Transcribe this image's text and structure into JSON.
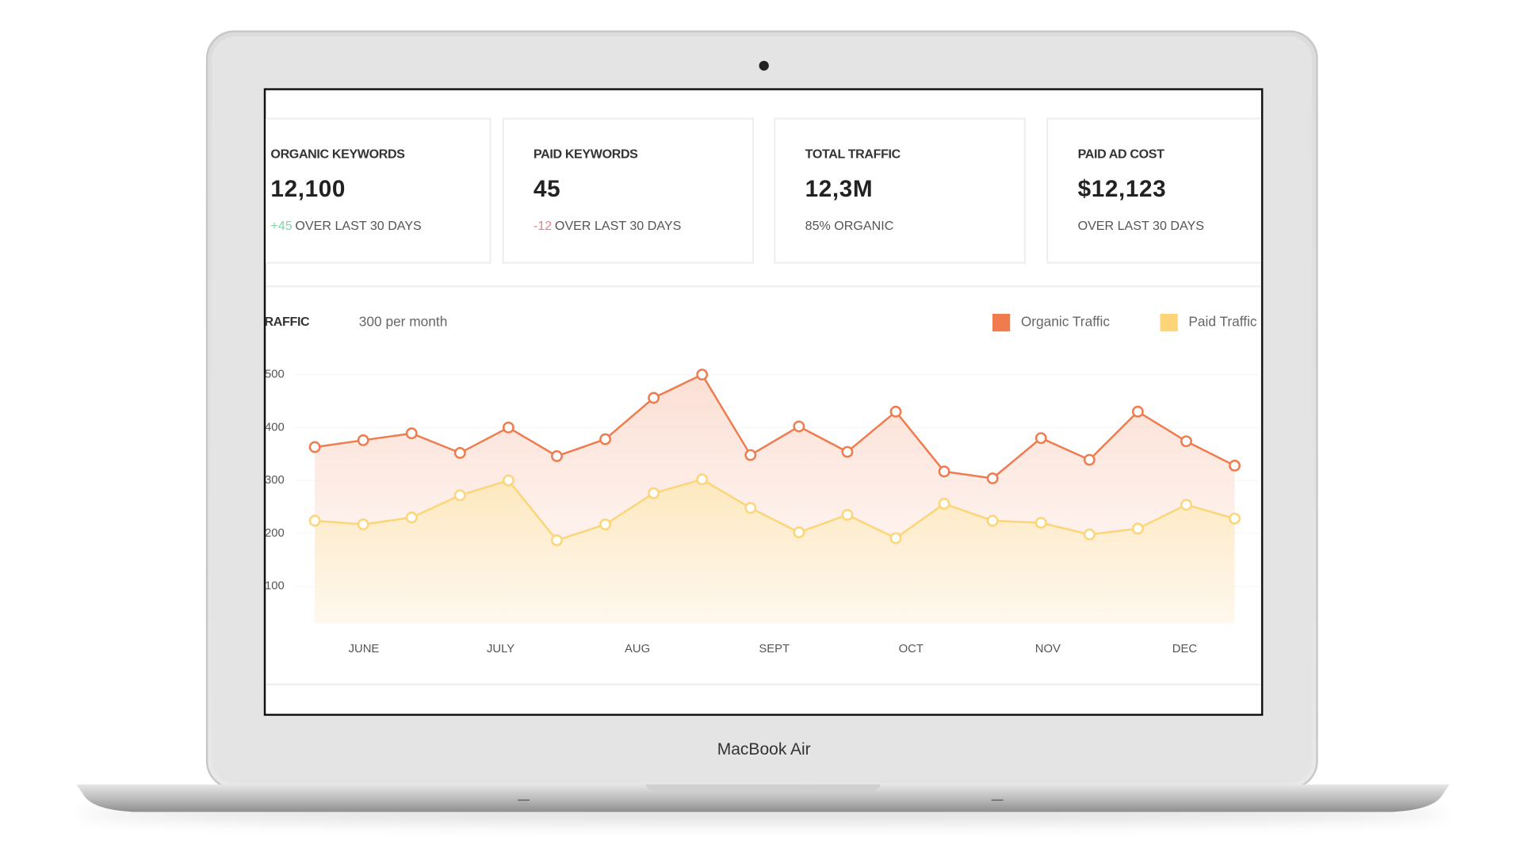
{
  "device": "MacBook Air",
  "cards": [
    {
      "title": "ORGANIC KEYWORDS",
      "value": "12,100",
      "change": "+45",
      "note": "OVER LAST 30 DAYS"
    },
    {
      "title": "PAID KEYWORDS",
      "value": "45",
      "change": "-12",
      "note": "OVER LAST 30 DAYS"
    },
    {
      "title": "TOTAL TRAFFIC",
      "value": "12,3M",
      "note": "85% ORGANIC"
    },
    {
      "title": "PAID AD COST",
      "value": "$12,123",
      "note": "OVER LAST 30 DAYS"
    }
  ],
  "chart_data": {
    "type": "line",
    "title": "TRAFFIC",
    "subtitle": "300 per month",
    "x_labels": [
      "JUNE",
      "JULY",
      "AUG",
      "SEPT",
      "OCT",
      "NOV",
      "DEC"
    ],
    "series": [
      {
        "name": "Organic Traffic",
        "color": "#ef7b4f",
        "values": [
          363,
          376,
          389,
          352,
          400,
          346,
          378,
          456,
          500,
          348,
          402,
          354,
          430,
          317,
          304,
          380,
          339,
          430,
          374,
          328
        ]
      },
      {
        "name": "Paid Traffic",
        "color": "#fbd577",
        "values": [
          224,
          217,
          230,
          272,
          300,
          187,
          217,
          276,
          302,
          248,
          202,
          235,
          191,
          256,
          224,
          220,
          198,
          209,
          254,
          228
        ]
      }
    ],
    "ylim": [
      30,
      520
    ],
    "yticks": [
      100,
      200,
      300,
      400,
      500
    ]
  }
}
